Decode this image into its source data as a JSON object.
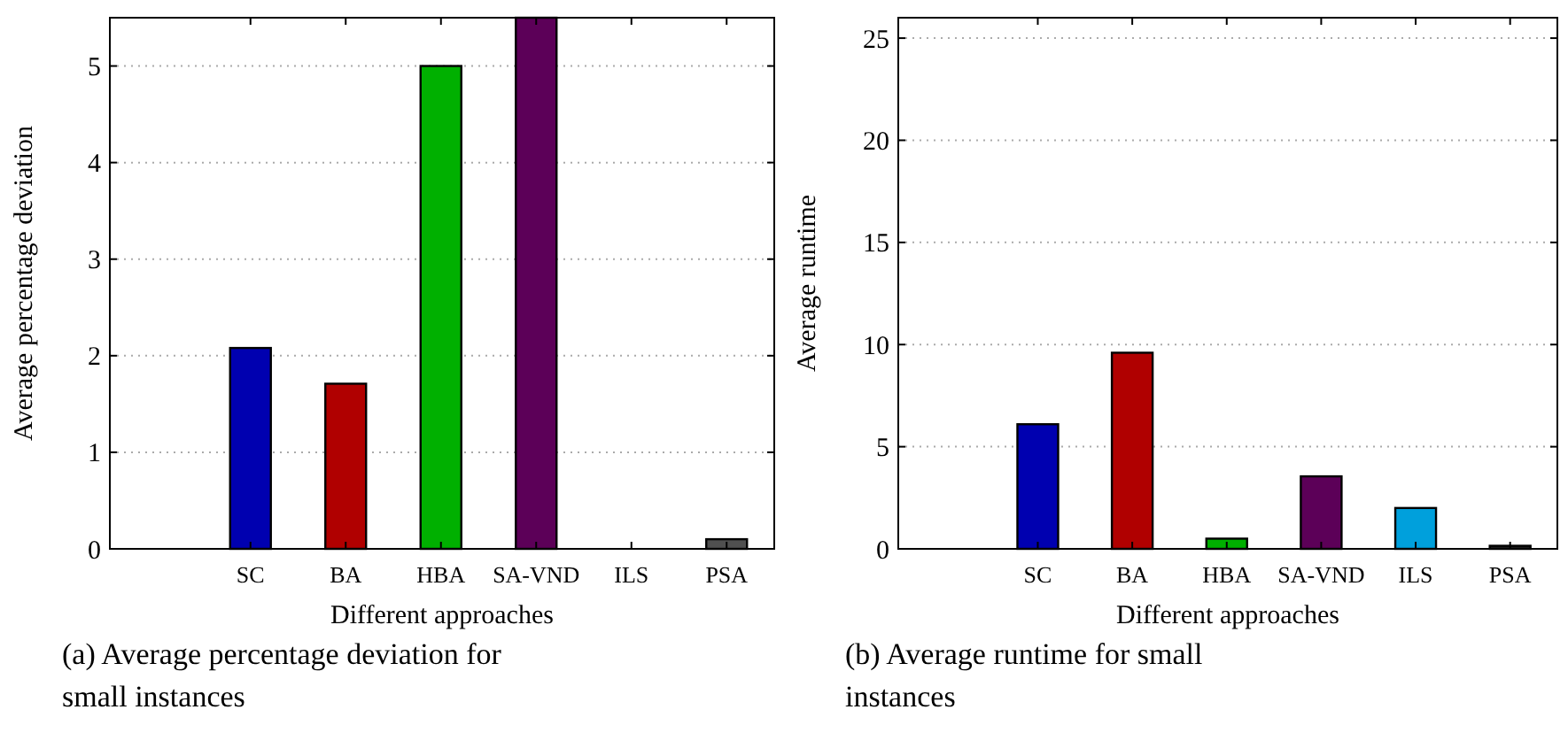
{
  "chart_data": [
    {
      "type": "bar",
      "categories": [
        "SC",
        "BA",
        "HBA",
        "SA-VND",
        "ILS",
        "PSA"
      ],
      "values": [
        2.08,
        1.71,
        5.0,
        5.5,
        0,
        0.1
      ],
      "colors": [
        "#0000b0",
        "#b00000",
        "#00b000",
        "#5c0058",
        "#00a0dc",
        "#505050"
      ],
      "ylim": [
        0,
        5.5
      ],
      "yticks": [
        0,
        1,
        2,
        3,
        4,
        5
      ],
      "grid": "y",
      "xlabel": "Different approaches",
      "ylabel": "Average percentage deviation",
      "annotations": [
        "(a) Average percentage deviation for small instances"
      ]
    },
    {
      "type": "bar",
      "categories": [
        "SC",
        "BA",
        "HBA",
        "SA-VND",
        "ILS",
        "PSA"
      ],
      "values": [
        6.1,
        9.6,
        0.5,
        3.55,
        2.0,
        0.15
      ],
      "colors": [
        "#0000b0",
        "#b00000",
        "#00b000",
        "#5c0058",
        "#00a0dc",
        "#202020"
      ],
      "ylim": [
        0,
        26
      ],
      "yticks": [
        0,
        5,
        10,
        15,
        20,
        25
      ],
      "grid": "y",
      "xlabel": "Different approaches",
      "ylabel": "Average runtime",
      "annotations": [
        "(b) Average runtime for small instances"
      ]
    }
  ]
}
